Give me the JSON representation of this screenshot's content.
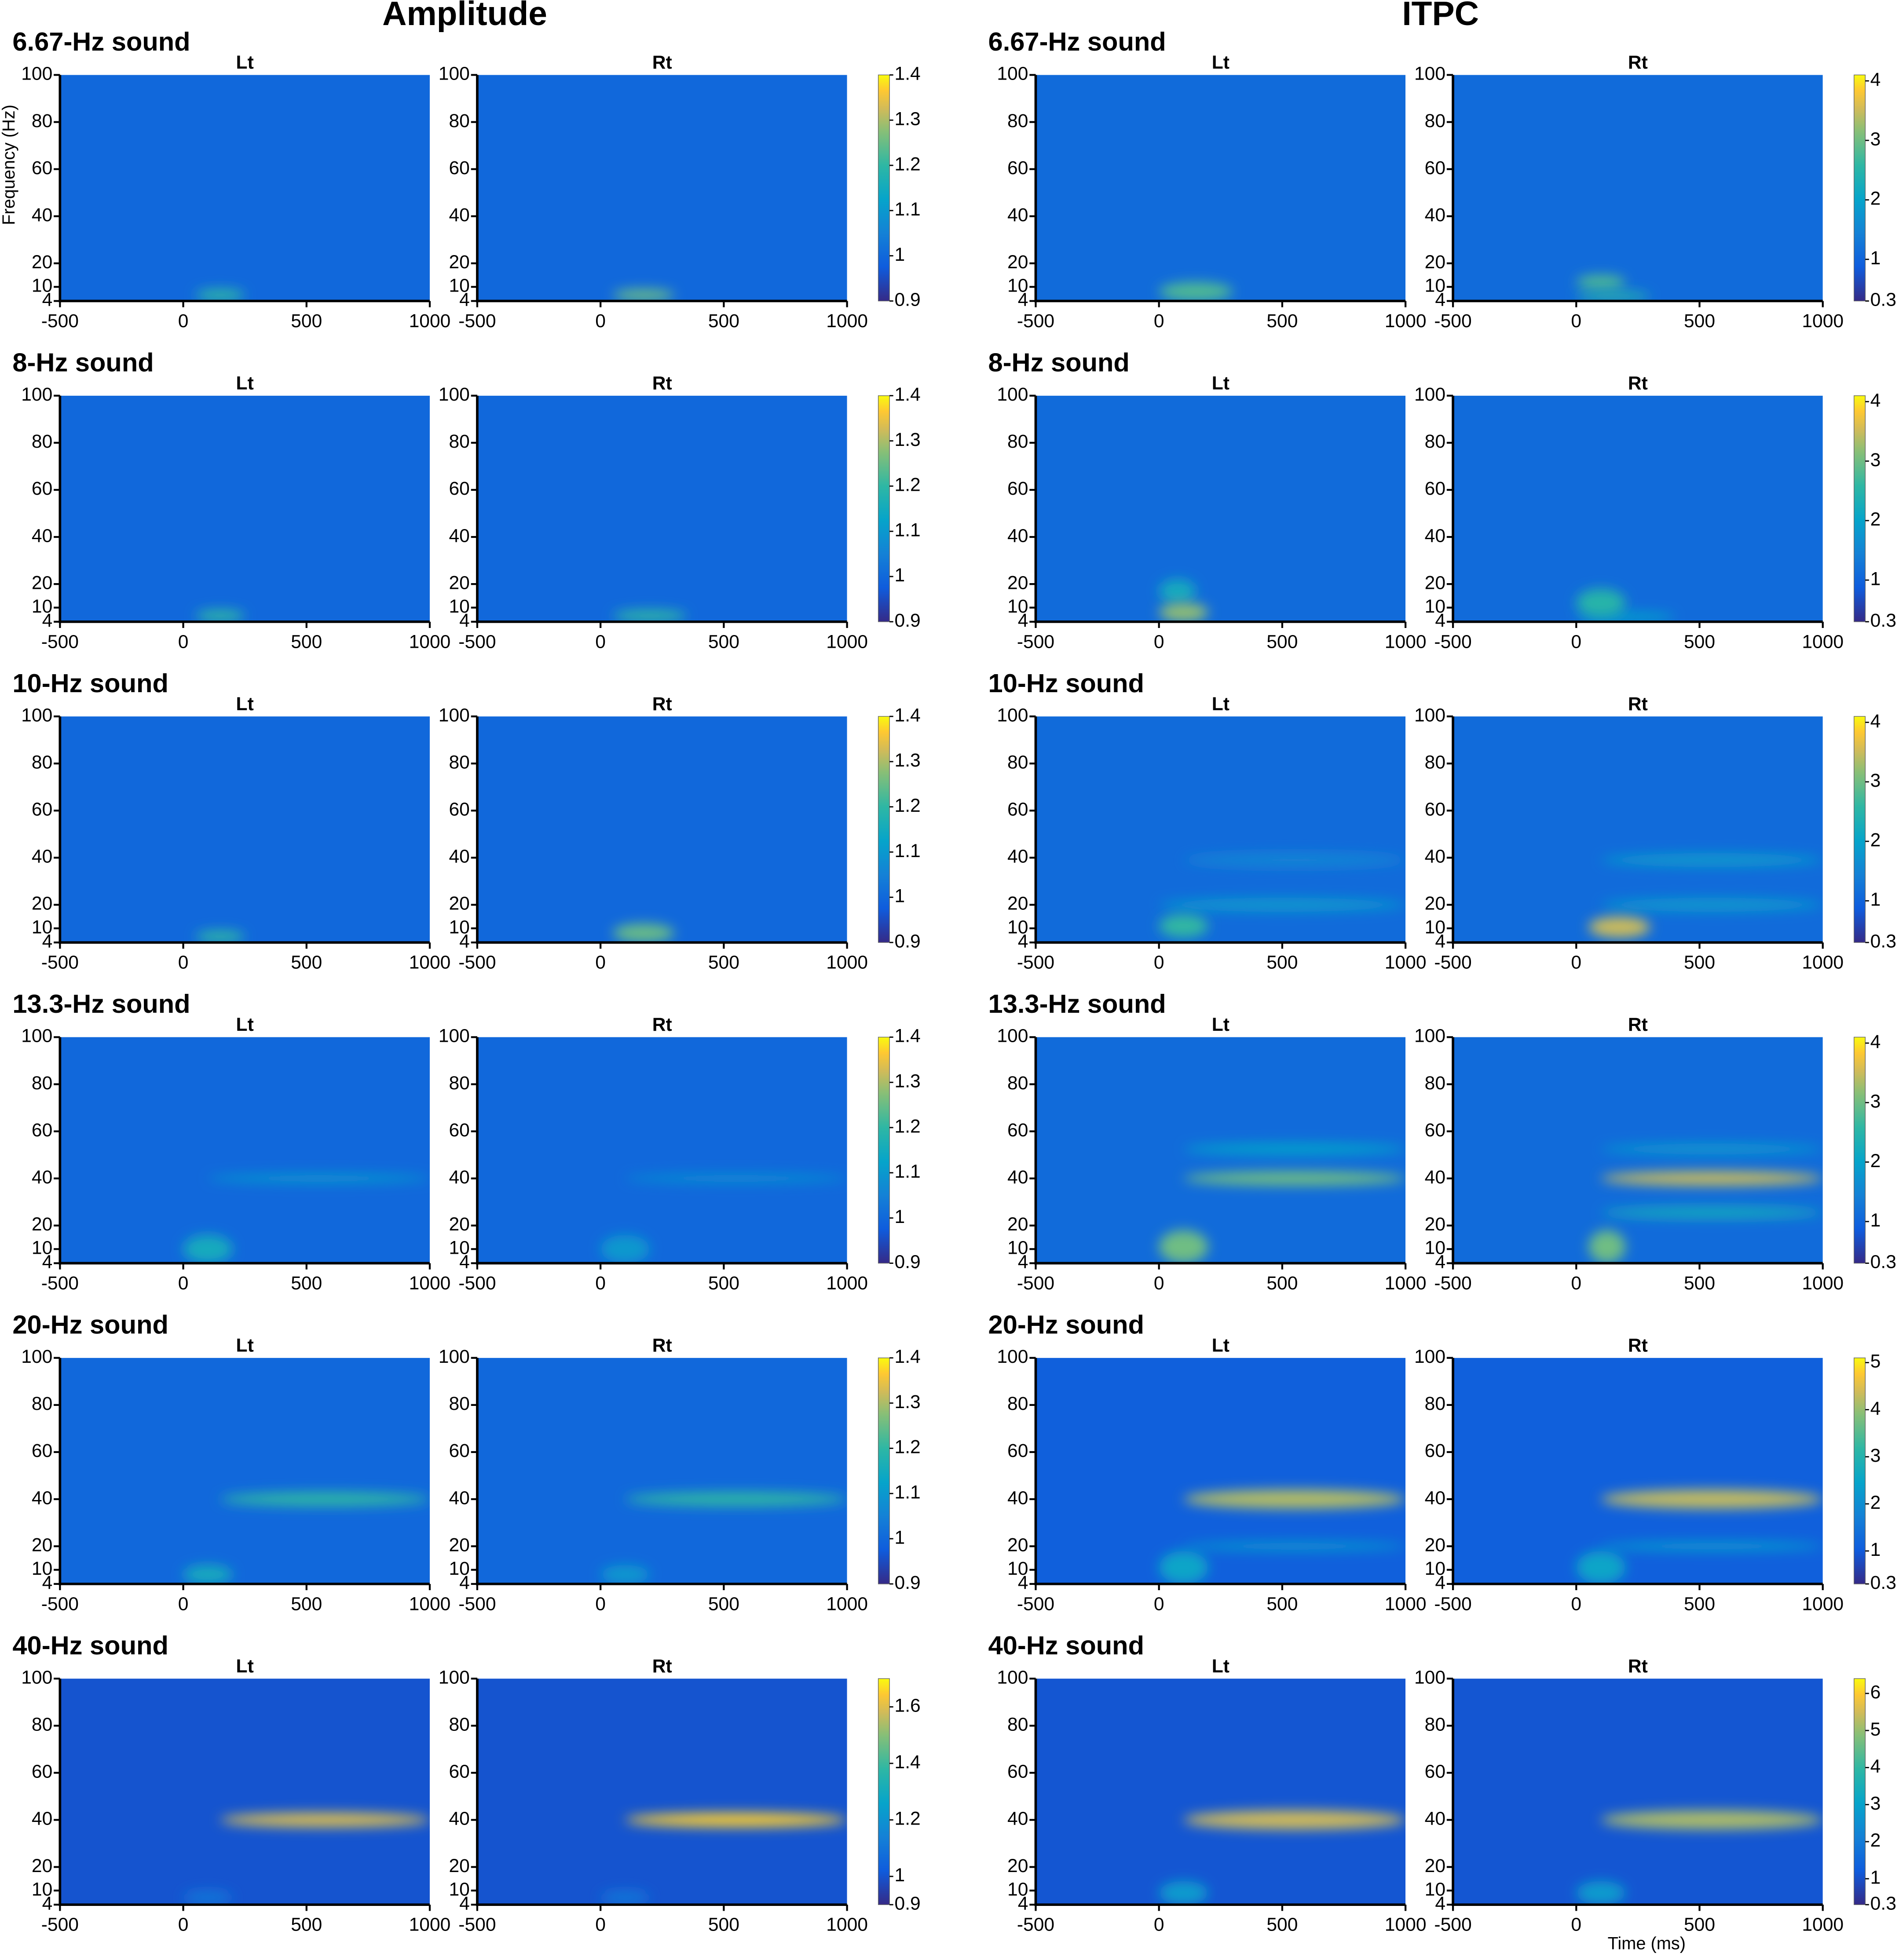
{
  "chart_data": [
    {
      "type": "heatmap",
      "title": "Amplitude",
      "y_label": "Frequency (Hz)",
      "xlim": [
        -500,
        1000
      ],
      "xticks": [
        -500,
        0,
        500,
        1000
      ],
      "ylim": [
        4,
        100
      ],
      "yticks": [
        4,
        10,
        20,
        40,
        60,
        80,
        100
      ],
      "groups": [
        {
          "title": "6.67-Hz sound",
          "zlim": [
            0.9,
            1.4
          ],
          "zticks": [
            0.9,
            1,
            1.1,
            1.2,
            1.3,
            1.4
          ],
          "panels": [
            {
              "title": "Lt",
              "baseline": 1,
              "peaks": [
                {
                  "t": [
                    50,
                    250
                  ],
                  "f": [
                    4,
                    9
                  ],
                  "value": 1.2
                }
              ]
            },
            {
              "title": "Rt",
              "baseline": 1,
              "peaks": [
                {
                  "t": [
                    50,
                    300
                  ],
                  "f": [
                    4,
                    9
                  ],
                  "value": 1.25
                }
              ]
            }
          ]
        },
        {
          "title": "8-Hz sound",
          "zlim": [
            0.9,
            1.4
          ],
          "zticks": [
            0.9,
            1,
            1.1,
            1.2,
            1.3,
            1.4
          ],
          "panels": [
            {
              "title": "Lt",
              "baseline": 1,
              "peaks": [
                {
                  "t": [
                    50,
                    250
                  ],
                  "f": [
                    4,
                    9
                  ],
                  "value": 1.2
                }
              ]
            },
            {
              "title": "Rt",
              "baseline": 1,
              "peaks": [
                {
                  "t": [
                    50,
                    350
                  ],
                  "f": [
                    4,
                    9
                  ],
                  "value": 1.2
                }
              ]
            }
          ]
        },
        {
          "title": "10-Hz sound",
          "zlim": [
            0.9,
            1.4
          ],
          "zticks": [
            0.9,
            1,
            1.1,
            1.2,
            1.3,
            1.4
          ],
          "panels": [
            {
              "title": "Lt",
              "baseline": 1,
              "peaks": [
                {
                  "t": [
                    50,
                    250
                  ],
                  "f": [
                    4,
                    9
                  ],
                  "value": 1.2
                }
              ]
            },
            {
              "title": "Rt",
              "baseline": 1,
              "peaks": [
                {
                  "t": [
                    50,
                    300
                  ],
                  "f": [
                    4,
                    12
                  ],
                  "value": 1.25
                }
              ]
            }
          ]
        },
        {
          "title": "13.3-Hz sound",
          "zlim": [
            0.9,
            1.4
          ],
          "zticks": [
            0.9,
            1,
            1.1,
            1.2,
            1.3,
            1.4
          ],
          "panels": [
            {
              "title": "Lt",
              "baseline": 1,
              "peaks": [
                {
                  "t": [
                    0,
                    200
                  ],
                  "f": [
                    4,
                    16
                  ],
                  "value": 1.15
                },
                {
                  "t": [
                    100,
                    1000
                  ],
                  "f": [
                    38,
                    42
                  ],
                  "value": 1.1
                }
              ]
            },
            {
              "title": "Rt",
              "baseline": 1,
              "peaks": [
                {
                  "t": [
                    0,
                    200
                  ],
                  "f": [
                    4,
                    16
                  ],
                  "value": 1.1
                },
                {
                  "t": [
                    100,
                    1000
                  ],
                  "f": [
                    38,
                    42
                  ],
                  "value": 1.08
                }
              ]
            }
          ]
        },
        {
          "title": "20-Hz sound",
          "zlim": [
            0.9,
            1.4
          ],
          "zticks": [
            0.9,
            1,
            1.1,
            1.2,
            1.3,
            1.4
          ],
          "panels": [
            {
              "title": "Lt",
              "baseline": 1,
              "peaks": [
                {
                  "t": [
                    0,
                    200
                  ],
                  "f": [
                    4,
                    12
                  ],
                  "value": 1.15
                },
                {
                  "t": [
                    150,
                    1000
                  ],
                  "f": [
                    37,
                    43
                  ],
                  "value": 1.2
                }
              ]
            },
            {
              "title": "Rt",
              "baseline": 1,
              "peaks": [
                {
                  "t": [
                    0,
                    200
                  ],
                  "f": [
                    4,
                    12
                  ],
                  "value": 1.1
                },
                {
                  "t": [
                    100,
                    1000
                  ],
                  "f": [
                    37,
                    43
                  ],
                  "value": 1.2
                }
              ]
            }
          ]
        },
        {
          "title": "40-Hz sound",
          "zlim": [
            0.9,
            1.7
          ],
          "zticks": [
            0.9,
            1,
            1.2,
            1.4,
            1.6
          ],
          "panels": [
            {
              "title": "Lt",
              "baseline": 1,
              "peaks": [
                {
                  "t": [
                    0,
                    200
                  ],
                  "f": [
                    4,
                    10
                  ],
                  "value": 1.1
                },
                {
                  "t": [
                    150,
                    1000
                  ],
                  "f": [
                    37,
                    43
                  ],
                  "value": 1.6
                }
              ]
            },
            {
              "title": "Rt",
              "baseline": 1,
              "peaks": [
                {
                  "t": [
                    0,
                    200
                  ],
                  "f": [
                    4,
                    10
                  ],
                  "value": 1.1
                },
                {
                  "t": [
                    100,
                    1000
                  ],
                  "f": [
                    37,
                    43
                  ],
                  "value": 1.65
                }
              ]
            }
          ]
        }
      ]
    },
    {
      "type": "heatmap",
      "title": "ITPC",
      "x_label": "Time (ms)",
      "xlim": [
        -500,
        1000
      ],
      "xticks": [
        -500,
        0,
        500,
        1000
      ],
      "ylim": [
        4,
        100
      ],
      "yticks": [
        4,
        10,
        20,
        40,
        60,
        80,
        100
      ],
      "groups": [
        {
          "title": "6.67-Hz sound",
          "zlim": [
            0.3,
            4.1
          ],
          "zticks": [
            0.3,
            1,
            2,
            3,
            4
          ],
          "panels": [
            {
              "title": "Lt",
              "baseline": 1.1,
              "peaks": [
                {
                  "t": [
                    0,
                    300
                  ],
                  "f": [
                    4,
                    12
                  ],
                  "value": 2.8
                }
              ]
            },
            {
              "title": "Rt",
              "baseline": 1.1,
              "peaks": [
                {
                  "t": [
                    0,
                    200
                  ],
                  "f": [
                    9,
                    15
                  ],
                  "value": 2.8
                },
                {
                  "t": [
                    0,
                    300
                  ],
                  "f": [
                    4,
                    8
                  ],
                  "value": 2.5
                }
              ]
            }
          ]
        },
        {
          "title": "8-Hz sound",
          "zlim": [
            0.3,
            4.1
          ],
          "zticks": [
            0.3,
            1,
            2,
            3,
            4
          ],
          "panels": [
            {
              "title": "Lt",
              "baseline": 1.1,
              "peaks": [
                {
                  "t": [
                    0,
                    150
                  ],
                  "f": [
                    12,
                    22
                  ],
                  "value": 2.2
                },
                {
                  "t": [
                    0,
                    200
                  ],
                  "f": [
                    4,
                    12
                  ],
                  "value": 3.2
                }
              ]
            },
            {
              "title": "Rt",
              "baseline": 1.1,
              "peaks": [
                {
                  "t": [
                    0,
                    400
                  ],
                  "f": [
                    4,
                    8
                  ],
                  "value": 2
                },
                {
                  "t": [
                    0,
                    200
                  ],
                  "f": [
                    6,
                    18
                  ],
                  "value": 2.5
                }
              ]
            }
          ]
        },
        {
          "title": "10-Hz sound",
          "zlim": [
            0.3,
            4.1
          ],
          "zticks": [
            0.3,
            1,
            2,
            3,
            4
          ],
          "panels": [
            {
              "title": "Lt",
              "baseline": 1.1,
              "peaks": [
                {
                  "t": [
                    0,
                    1000
                  ],
                  "f": [
                    17,
                    23
                  ],
                  "value": 1.8
                },
                {
                  "t": [
                    100,
                    1000
                  ],
                  "f": [
                    36,
                    42
                  ],
                  "value": 1.5
                },
                {
                  "t": [
                    0,
                    200
                  ],
                  "f": [
                    6,
                    16
                  ],
                  "value": 2.6
                }
              ]
            },
            {
              "title": "Rt",
              "baseline": 1.1,
              "peaks": [
                {
                  "t": [
                    100,
                    1000
                  ],
                  "f": [
                    17,
                    23
                  ],
                  "value": 1.8
                },
                {
                  "t": [
                    100,
                    1000
                  ],
                  "f": [
                    36,
                    42
                  ],
                  "value": 1.8
                },
                {
                  "t": [
                    50,
                    300
                  ],
                  "f": [
                    6,
                    15
                  ],
                  "value": 3.5
                }
              ]
            }
          ]
        },
        {
          "title": "13.3-Hz sound",
          "zlim": [
            0.3,
            4.1
          ],
          "zticks": [
            0.3,
            1,
            2,
            3,
            4
          ],
          "panels": [
            {
              "title": "Lt",
              "baseline": 1.1,
              "peaks": [
                {
                  "t": [
                    100,
                    1000
                  ],
                  "f": [
                    50,
                    55
                  ],
                  "value": 2
                },
                {
                  "t": [
                    0,
                    200
                  ],
                  "f": [
                    4,
                    18
                  ],
                  "value": 3
                },
                {
                  "t": [
                    100,
                    1000
                  ],
                  "f": [
                    37,
                    43
                  ],
                  "value": 3
                }
              ]
            },
            {
              "title": "Rt",
              "baseline": 1.1,
              "peaks": [
                {
                  "t": [
                    100,
                    1000
                  ],
                  "f": [
                    50,
                    55
                  ],
                  "value": 1.8
                },
                {
                  "t": [
                    100,
                    1000
                  ],
                  "f": [
                    23,
                    28
                  ],
                  "value": 2.2
                },
                {
                  "t": [
                    50,
                    200
                  ],
                  "f": [
                    4,
                    18
                  ],
                  "value": 3
                },
                {
                  "t": [
                    100,
                    1000
                  ],
                  "f": [
                    37,
                    43
                  ],
                  "value": 3.5
                }
              ]
            }
          ]
        },
        {
          "title": "20-Hz sound",
          "zlim": [
            0.3,
            5.1
          ],
          "zticks": [
            0.3,
            1,
            2,
            3,
            4,
            5
          ],
          "panels": [
            {
              "title": "Lt",
              "baseline": 1.1,
              "peaks": [
                {
                  "t": [
                    100,
                    1000
                  ],
                  "f": [
                    18,
                    22
                  ],
                  "value": 2.2
                },
                {
                  "t": [
                    0,
                    200
                  ],
                  "f": [
                    4,
                    18
                  ],
                  "value": 2.5
                },
                {
                  "t": [
                    100,
                    1000
                  ],
                  "f": [
                    36,
                    44
                  ],
                  "value": 4.2
                }
              ]
            },
            {
              "title": "Rt",
              "baseline": 1.1,
              "peaks": [
                {
                  "t": [
                    100,
                    1000
                  ],
                  "f": [
                    18,
                    22
                  ],
                  "value": 2.3
                },
                {
                  "t": [
                    0,
                    200
                  ],
                  "f": [
                    4,
                    18
                  ],
                  "value": 2.5
                },
                {
                  "t": [
                    100,
                    1000
                  ],
                  "f": [
                    36,
                    44
                  ],
                  "value": 4.3
                }
              ]
            }
          ]
        },
        {
          "title": "40-Hz sound",
          "zlim": [
            0.3,
            6.4
          ],
          "zticks": [
            0.3,
            1,
            2,
            3,
            4,
            5,
            6
          ],
          "panels": [
            {
              "title": "Lt",
              "baseline": 1.1,
              "peaks": [
                {
                  "t": [
                    0,
                    200
                  ],
                  "f": [
                    4,
                    14
                  ],
                  "value": 2.8
                },
                {
                  "t": [
                    100,
                    1000
                  ],
                  "f": [
                    36,
                    44
                  ],
                  "value": 5.5
                }
              ]
            },
            {
              "title": "Rt",
              "baseline": 1.1,
              "peaks": [
                {
                  "t": [
                    0,
                    200
                  ],
                  "f": [
                    4,
                    14
                  ],
                  "value": 2.8
                },
                {
                  "t": [
                    100,
                    1000
                  ],
                  "f": [
                    36,
                    44
                  ],
                  "value": 5.2
                }
              ]
            }
          ]
        }
      ]
    }
  ]
}
